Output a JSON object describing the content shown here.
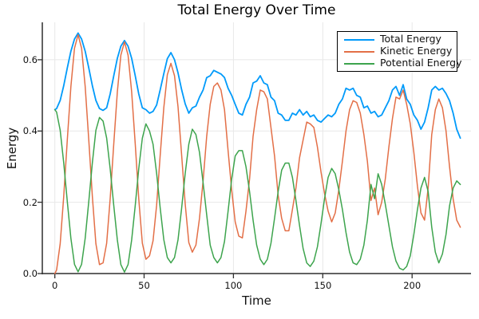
{
  "chart_data": {
    "type": "line",
    "title": "Total Energy Over Time",
    "xlabel": "Time",
    "ylabel": "Energy",
    "xlim": [
      -7,
      233
    ],
    "ylim": [
      0,
      0.705
    ],
    "x_ticks": [
      0,
      50,
      100,
      150,
      200
    ],
    "x_tick_labels": [
      "0",
      "50",
      "100",
      "150",
      "200"
    ],
    "y_ticks": [
      0.0,
      0.2,
      0.4,
      0.6
    ],
    "y_tick_labels": [
      "0.0",
      "0.2",
      "0.4",
      "0.6"
    ],
    "grid": true,
    "legend_position": "top-right",
    "x": [
      0,
      1,
      3,
      5,
      7,
      9,
      11,
      13,
      15,
      17,
      19,
      21,
      23,
      25,
      27,
      29,
      31,
      33,
      35,
      37,
      39,
      41,
      43,
      45,
      47,
      49,
      51,
      53,
      55,
      57,
      59,
      61,
      63,
      65,
      67,
      69,
      71,
      73,
      75,
      77,
      79,
      81,
      83,
      85,
      87,
      89,
      91,
      93,
      95,
      97,
      99,
      101,
      103,
      105,
      107,
      109,
      111,
      113,
      115,
      117,
      119,
      121,
      123,
      125,
      127,
      129,
      131,
      133,
      135,
      137,
      139,
      141,
      143,
      145,
      147,
      149,
      151,
      153,
      155,
      157,
      159,
      161,
      163,
      165,
      167,
      169,
      171,
      173,
      175,
      177,
      179,
      181,
      183,
      185,
      187,
      189,
      191,
      193,
      195,
      197,
      199,
      201,
      203,
      205,
      207,
      209,
      211,
      213,
      215,
      217,
      219,
      221,
      223,
      225,
      227
    ],
    "series": [
      {
        "name": "Total Energy",
        "color": "#009AFA",
        "values": [
          0.46,
          0.463,
          0.486,
          0.527,
          0.577,
          0.624,
          0.658,
          0.675,
          0.658,
          0.624,
          0.577,
          0.527,
          0.486,
          0.463,
          0.458,
          0.465,
          0.504,
          0.555,
          0.604,
          0.638,
          0.654,
          0.638,
          0.604,
          0.555,
          0.504,
          0.465,
          0.46,
          0.45,
          0.455,
          0.473,
          0.516,
          0.561,
          0.603,
          0.62,
          0.6,
          0.563,
          0.516,
          0.476,
          0.45,
          0.465,
          0.47,
          0.495,
          0.515,
          0.55,
          0.555,
          0.57,
          0.565,
          0.56,
          0.55,
          0.52,
          0.5,
          0.475,
          0.45,
          0.445,
          0.475,
          0.495,
          0.535,
          0.54,
          0.555,
          0.535,
          0.53,
          0.495,
          0.485,
          0.45,
          0.445,
          0.43,
          0.43,
          0.45,
          0.445,
          0.46,
          0.445,
          0.455,
          0.44,
          0.445,
          0.43,
          0.425,
          0.435,
          0.445,
          0.44,
          0.45,
          0.475,
          0.49,
          0.52,
          0.515,
          0.52,
          0.5,
          0.495,
          0.465,
          0.47,
          0.45,
          0.455,
          0.44,
          0.445,
          0.465,
          0.485,
          0.515,
          0.525,
          0.5,
          0.53,
          0.49,
          0.475,
          0.445,
          0.43,
          0.405,
          0.425,
          0.465,
          0.515,
          0.525,
          0.515,
          0.52,
          0.505,
          0.485,
          0.45,
          0.405,
          0.38
        ]
      },
      {
        "name": "Kinetic Energy",
        "color": "#E36F47",
        "values": [
          0.0,
          0.01,
          0.084,
          0.216,
          0.375,
          0.525,
          0.632,
          0.67,
          0.632,
          0.525,
          0.375,
          0.216,
          0.084,
          0.025,
          0.03,
          0.085,
          0.21,
          0.364,
          0.51,
          0.613,
          0.65,
          0.613,
          0.51,
          0.364,
          0.21,
          0.085,
          0.04,
          0.05,
          0.092,
          0.192,
          0.333,
          0.466,
          0.558,
          0.59,
          0.555,
          0.468,
          0.333,
          0.195,
          0.087,
          0.06,
          0.08,
          0.155,
          0.26,
          0.385,
          0.475,
          0.525,
          0.535,
          0.515,
          0.46,
          0.345,
          0.235,
          0.145,
          0.105,
          0.1,
          0.175,
          0.265,
          0.385,
          0.46,
          0.515,
          0.51,
          0.49,
          0.41,
          0.33,
          0.22,
          0.155,
          0.12,
          0.12,
          0.18,
          0.24,
          0.325,
          0.375,
          0.425,
          0.42,
          0.41,
          0.355,
          0.285,
          0.225,
          0.175,
          0.145,
          0.17,
          0.235,
          0.315,
          0.4,
          0.46,
          0.485,
          0.48,
          0.45,
          0.39,
          0.315,
          0.205,
          0.24,
          0.165,
          0.2,
          0.265,
          0.355,
          0.435,
          0.495,
          0.49,
          0.515,
          0.475,
          0.42,
          0.34,
          0.245,
          0.17,
          0.15,
          0.24,
          0.39,
          0.46,
          0.49,
          0.465,
          0.4,
          0.3,
          0.21,
          0.15,
          0.13
        ]
      },
      {
        "name": "Potential Energy",
        "color": "#3DA44D",
        "values": [
          0.46,
          0.453,
          0.402,
          0.311,
          0.202,
          0.099,
          0.026,
          0.005,
          0.026,
          0.099,
          0.202,
          0.311,
          0.402,
          0.438,
          0.428,
          0.38,
          0.294,
          0.191,
          0.094,
          0.025,
          0.004,
          0.025,
          0.094,
          0.191,
          0.294,
          0.38,
          0.42,
          0.4,
          0.363,
          0.281,
          0.183,
          0.095,
          0.045,
          0.03,
          0.045,
          0.095,
          0.183,
          0.281,
          0.363,
          0.405,
          0.39,
          0.34,
          0.255,
          0.165,
          0.08,
          0.045,
          0.03,
          0.045,
          0.09,
          0.175,
          0.265,
          0.33,
          0.345,
          0.345,
          0.3,
          0.23,
          0.15,
          0.08,
          0.04,
          0.025,
          0.04,
          0.085,
          0.155,
          0.23,
          0.29,
          0.31,
          0.31,
          0.27,
          0.205,
          0.135,
          0.07,
          0.03,
          0.02,
          0.035,
          0.075,
          0.14,
          0.21,
          0.27,
          0.295,
          0.28,
          0.235,
          0.18,
          0.115,
          0.06,
          0.03,
          0.025,
          0.04,
          0.08,
          0.15,
          0.25,
          0.21,
          0.28,
          0.25,
          0.195,
          0.135,
          0.075,
          0.035,
          0.015,
          0.01,
          0.02,
          0.05,
          0.11,
          0.18,
          0.24,
          0.27,
          0.23,
          0.13,
          0.06,
          0.03,
          0.055,
          0.11,
          0.19,
          0.24,
          0.26,
          0.25
        ]
      }
    ]
  }
}
